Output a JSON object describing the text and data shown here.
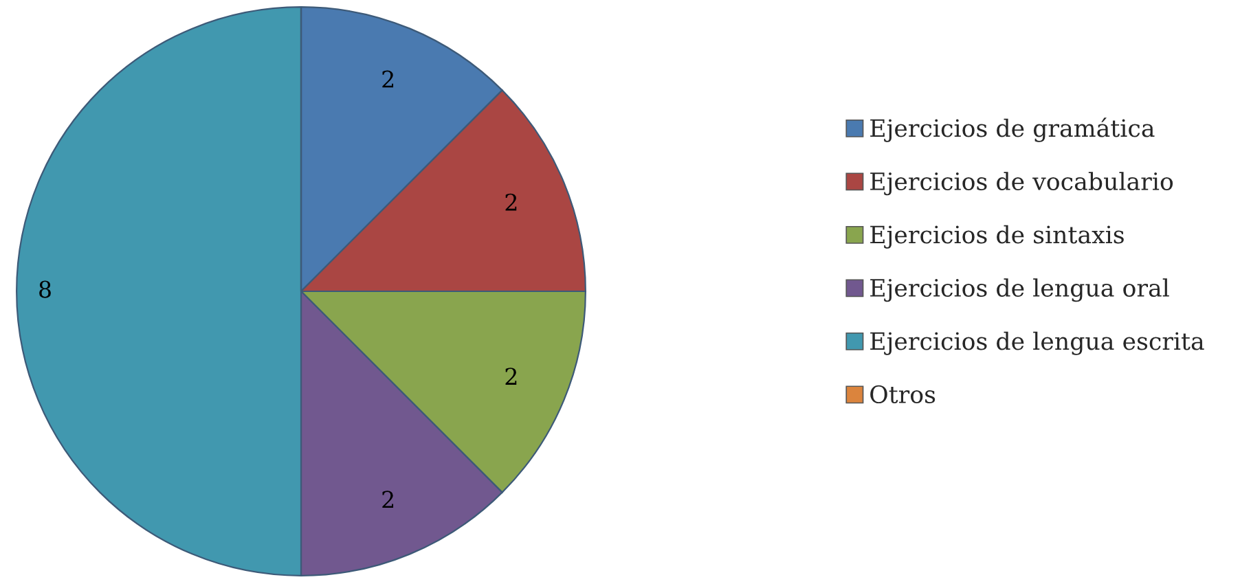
{
  "chart_data": {
    "type": "pie",
    "categories": [
      "Ejercicios de gramática",
      "Ejercicios de vocabulario",
      "Ejercicios de sintaxis",
      "Ejercicios de lengua oral",
      "Ejercicios de lengua escrita",
      "Otros"
    ],
    "values": [
      2,
      2,
      2,
      2,
      8,
      0
    ],
    "value_labels": [
      "2",
      "2",
      "2",
      "2",
      "8",
      null
    ],
    "colors": [
      "#4a7ab0",
      "#aa4643",
      "#89a54e",
      "#71588f",
      "#4198af",
      "#db843d"
    ],
    "legend": "right"
  }
}
